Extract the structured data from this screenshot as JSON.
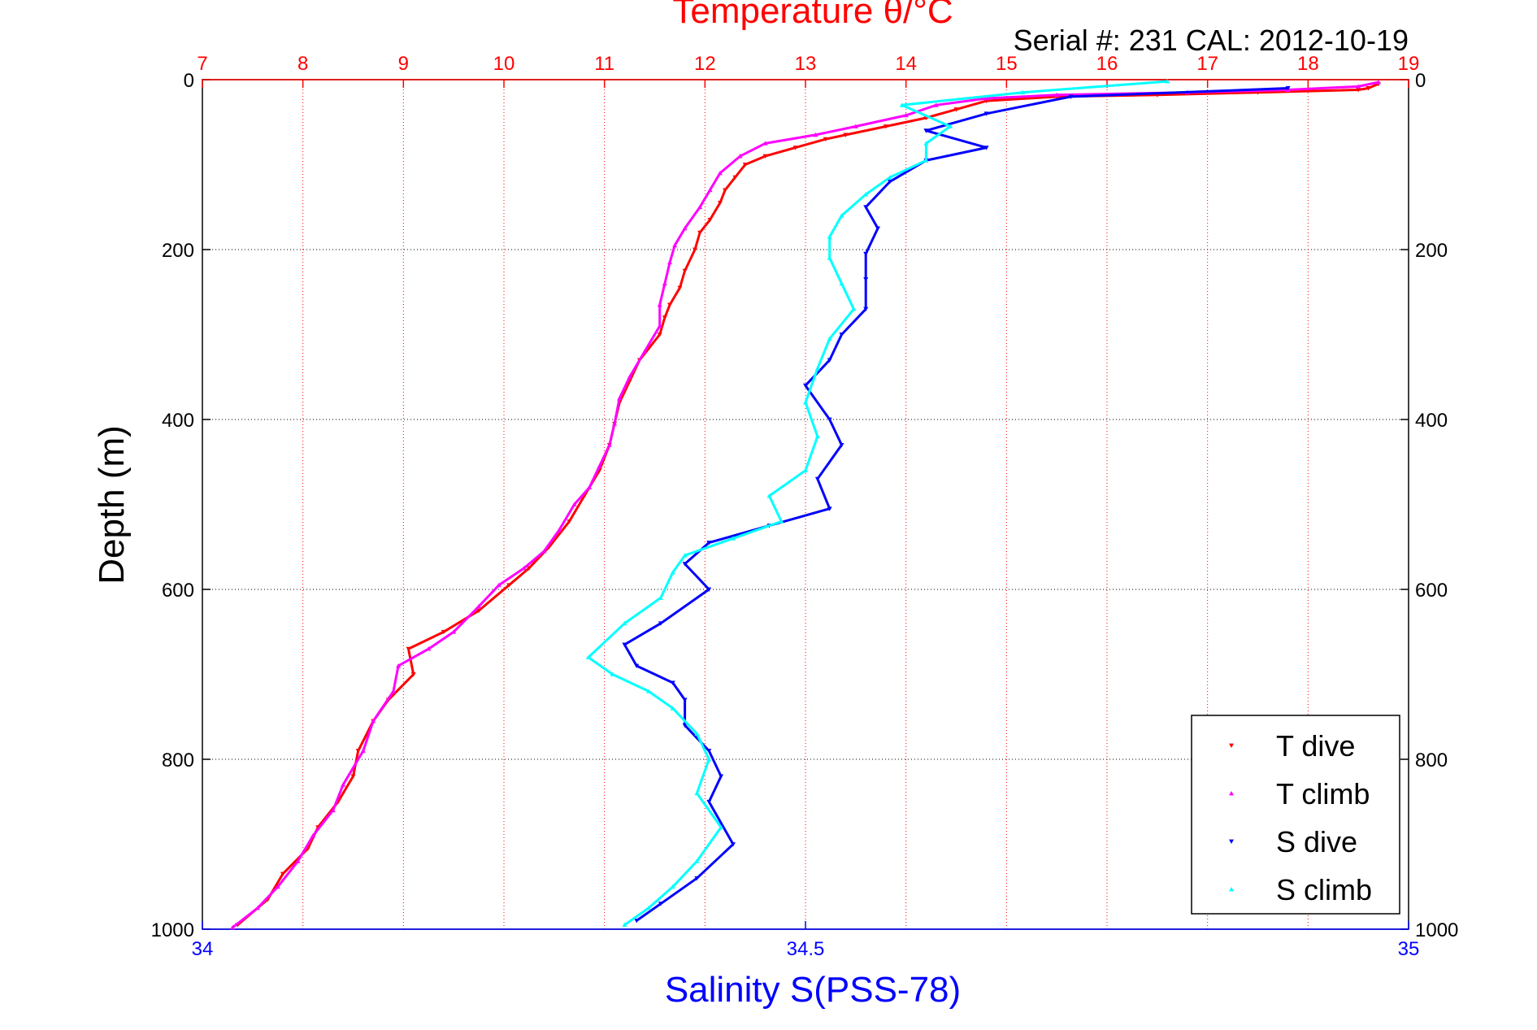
{
  "chart_data": {
    "type": "scatter",
    "title": "Temperature θ/°C",
    "subtitle": "Serial #: 231  CAL: 2012-10-19",
    "ylabel": "Depth (m)",
    "xlabel": "Salinity S(PSS-78)",
    "grid": true,
    "legend_position": "bottom-right",
    "y_axis": {
      "label": "Depth (m)",
      "range": [
        0,
        1000
      ],
      "inverted": true,
      "ticks": [
        0,
        200,
        400,
        600,
        800,
        1000
      ],
      "tick_labels": [
        "0",
        "200",
        "400",
        "600",
        "800",
        "1000"
      ]
    },
    "temperature_axis": {
      "position": "top",
      "color": "#ff0000",
      "range": [
        7,
        19
      ],
      "ticks": [
        7,
        8,
        9,
        10,
        11,
        12,
        13,
        14,
        15,
        16,
        17,
        18,
        19
      ],
      "tick_labels": [
        "7",
        "8",
        "9",
        "10",
        "11",
        "12",
        "13",
        "14",
        "15",
        "16",
        "17",
        "18",
        "19"
      ]
    },
    "salinity_axis": {
      "position": "bottom",
      "color": "#0000ff",
      "label": "Salinity S(PSS-78)",
      "range": [
        34,
        35
      ],
      "ticks": [
        34,
        34.5,
        35
      ],
      "tick_labels": [
        "34",
        "34.5",
        "35"
      ]
    },
    "series": [
      {
        "name": "T dive",
        "axis": "temperature",
        "marker": "triangle-down",
        "color": "#ff0000",
        "points": [
          [
            18.7,
            5
          ],
          [
            18.6,
            10
          ],
          [
            18.5,
            12
          ],
          [
            17.5,
            15
          ],
          [
            16.5,
            18
          ],
          [
            15.5,
            20
          ],
          [
            14.8,
            25
          ],
          [
            14.5,
            35
          ],
          [
            14.2,
            45
          ],
          [
            13.8,
            55
          ],
          [
            13.4,
            65
          ],
          [
            13.2,
            70
          ],
          [
            12.9,
            80
          ],
          [
            12.6,
            90
          ],
          [
            12.4,
            100
          ],
          [
            12.3,
            115
          ],
          [
            12.2,
            130
          ],
          [
            12.15,
            145
          ],
          [
            12.05,
            165
          ],
          [
            11.95,
            180
          ],
          [
            11.9,
            200
          ],
          [
            11.8,
            225
          ],
          [
            11.75,
            245
          ],
          [
            11.65,
            265
          ],
          [
            11.6,
            280
          ],
          [
            11.55,
            300
          ],
          [
            11.35,
            330
          ],
          [
            11.25,
            355
          ],
          [
            11.15,
            380
          ],
          [
            11.1,
            405
          ],
          [
            11.05,
            430
          ],
          [
            10.95,
            460
          ],
          [
            10.8,
            490
          ],
          [
            10.65,
            520
          ],
          [
            10.45,
            550
          ],
          [
            10.25,
            575
          ],
          [
            10.05,
            595
          ],
          [
            9.75,
            625
          ],
          [
            9.4,
            650
          ],
          [
            9.05,
            670
          ],
          [
            9.1,
            700
          ],
          [
            8.85,
            730
          ],
          [
            8.7,
            755
          ],
          [
            8.55,
            790
          ],
          [
            8.5,
            820
          ],
          [
            8.35,
            850
          ],
          [
            8.15,
            880
          ],
          [
            8.05,
            905
          ],
          [
            7.8,
            935
          ],
          [
            7.65,
            965
          ],
          [
            7.35,
            995
          ]
        ]
      },
      {
        "name": "T climb",
        "axis": "temperature",
        "marker": "triangle-up",
        "color": "#ff00ff",
        "points": [
          [
            18.7,
            3
          ],
          [
            18.5,
            8
          ],
          [
            17.8,
            12
          ],
          [
            16.8,
            15
          ],
          [
            15.5,
            18
          ],
          [
            14.8,
            22
          ],
          [
            14.3,
            30
          ],
          [
            14.0,
            42
          ],
          [
            13.5,
            55
          ],
          [
            13.1,
            65
          ],
          [
            12.6,
            75
          ],
          [
            12.35,
            90
          ],
          [
            12.15,
            110
          ],
          [
            12.05,
            130
          ],
          [
            11.95,
            150
          ],
          [
            11.8,
            175
          ],
          [
            11.7,
            195
          ],
          [
            11.65,
            215
          ],
          [
            11.6,
            240
          ],
          [
            11.55,
            265
          ],
          [
            11.55,
            290
          ],
          [
            11.4,
            320
          ],
          [
            11.25,
            350
          ],
          [
            11.15,
            375
          ],
          [
            11.1,
            405
          ],
          [
            11.05,
            430
          ],
          [
            10.95,
            455
          ],
          [
            10.85,
            480
          ],
          [
            10.7,
            500
          ],
          [
            10.55,
            530
          ],
          [
            10.4,
            555
          ],
          [
            10.2,
            575
          ],
          [
            9.95,
            595
          ],
          [
            9.75,
            620
          ],
          [
            9.5,
            650
          ],
          [
            9.25,
            670
          ],
          [
            8.95,
            690
          ],
          [
            8.9,
            720
          ],
          [
            8.7,
            755
          ],
          [
            8.6,
            790
          ],
          [
            8.4,
            830
          ],
          [
            8.3,
            860
          ],
          [
            8.1,
            890
          ],
          [
            7.95,
            920
          ],
          [
            7.75,
            950
          ],
          [
            7.55,
            975
          ],
          [
            7.3,
            998
          ]
        ]
      },
      {
        "name": "S dive",
        "axis": "salinity",
        "marker": "triangle-down",
        "color": "#0000ff",
        "points": [
          [
            34.9,
            10
          ],
          [
            34.72,
            20
          ],
          [
            34.65,
            40
          ],
          [
            34.6,
            60
          ],
          [
            34.65,
            80
          ],
          [
            34.6,
            95
          ],
          [
            34.57,
            120
          ],
          [
            34.55,
            150
          ],
          [
            34.56,
            175
          ],
          [
            34.55,
            205
          ],
          [
            34.55,
            235
          ],
          [
            34.55,
            270
          ],
          [
            34.53,
            300
          ],
          [
            34.52,
            330
          ],
          [
            34.5,
            360
          ],
          [
            34.52,
            400
          ],
          [
            34.53,
            430
          ],
          [
            34.51,
            470
          ],
          [
            34.52,
            505
          ],
          [
            34.47,
            525
          ],
          [
            34.42,
            545
          ],
          [
            34.4,
            570
          ],
          [
            34.42,
            600
          ],
          [
            34.38,
            640
          ],
          [
            34.35,
            665
          ],
          [
            34.36,
            690
          ],
          [
            34.39,
            710
          ],
          [
            34.4,
            730
          ],
          [
            34.4,
            760
          ],
          [
            34.42,
            790
          ],
          [
            34.43,
            820
          ],
          [
            34.42,
            850
          ],
          [
            34.44,
            900
          ],
          [
            34.41,
            940
          ],
          [
            34.38,
            970
          ],
          [
            34.36,
            990
          ]
        ]
      },
      {
        "name": "S climb",
        "axis": "salinity",
        "marker": "triangle-up",
        "color": "#00ffff",
        "points": [
          [
            34.8,
            2
          ],
          [
            34.68,
            15
          ],
          [
            34.58,
            30
          ],
          [
            34.62,
            55
          ],
          [
            34.6,
            75
          ],
          [
            34.6,
            95
          ],
          [
            34.57,
            115
          ],
          [
            34.55,
            135
          ],
          [
            34.53,
            160
          ],
          [
            34.52,
            185
          ],
          [
            34.52,
            210
          ],
          [
            34.53,
            240
          ],
          [
            34.54,
            270
          ],
          [
            34.52,
            305
          ],
          [
            34.51,
            340
          ],
          [
            34.5,
            380
          ],
          [
            34.51,
            420
          ],
          [
            34.5,
            460
          ],
          [
            34.47,
            490
          ],
          [
            34.48,
            520
          ],
          [
            34.44,
            540
          ],
          [
            34.4,
            560
          ],
          [
            34.39,
            580
          ],
          [
            34.38,
            610
          ],
          [
            34.35,
            640
          ],
          [
            34.32,
            680
          ],
          [
            34.34,
            700
          ],
          [
            34.37,
            720
          ],
          [
            34.39,
            740
          ],
          [
            34.41,
            770
          ],
          [
            34.42,
            800
          ],
          [
            34.41,
            840
          ],
          [
            34.43,
            880
          ],
          [
            34.41,
            920
          ],
          [
            34.39,
            950
          ],
          [
            34.37,
            975
          ],
          [
            34.35,
            995
          ]
        ]
      }
    ]
  },
  "legend": {
    "items": [
      {
        "label": "T dive",
        "color": "#ff0000",
        "marker": "triangle-down"
      },
      {
        "label": "T climb",
        "color": "#ff00ff",
        "marker": "triangle-up"
      },
      {
        "label": "S dive",
        "color": "#0000ff",
        "marker": "triangle-down"
      },
      {
        "label": "S climb",
        "color": "#00ffff",
        "marker": "triangle-up"
      }
    ]
  }
}
